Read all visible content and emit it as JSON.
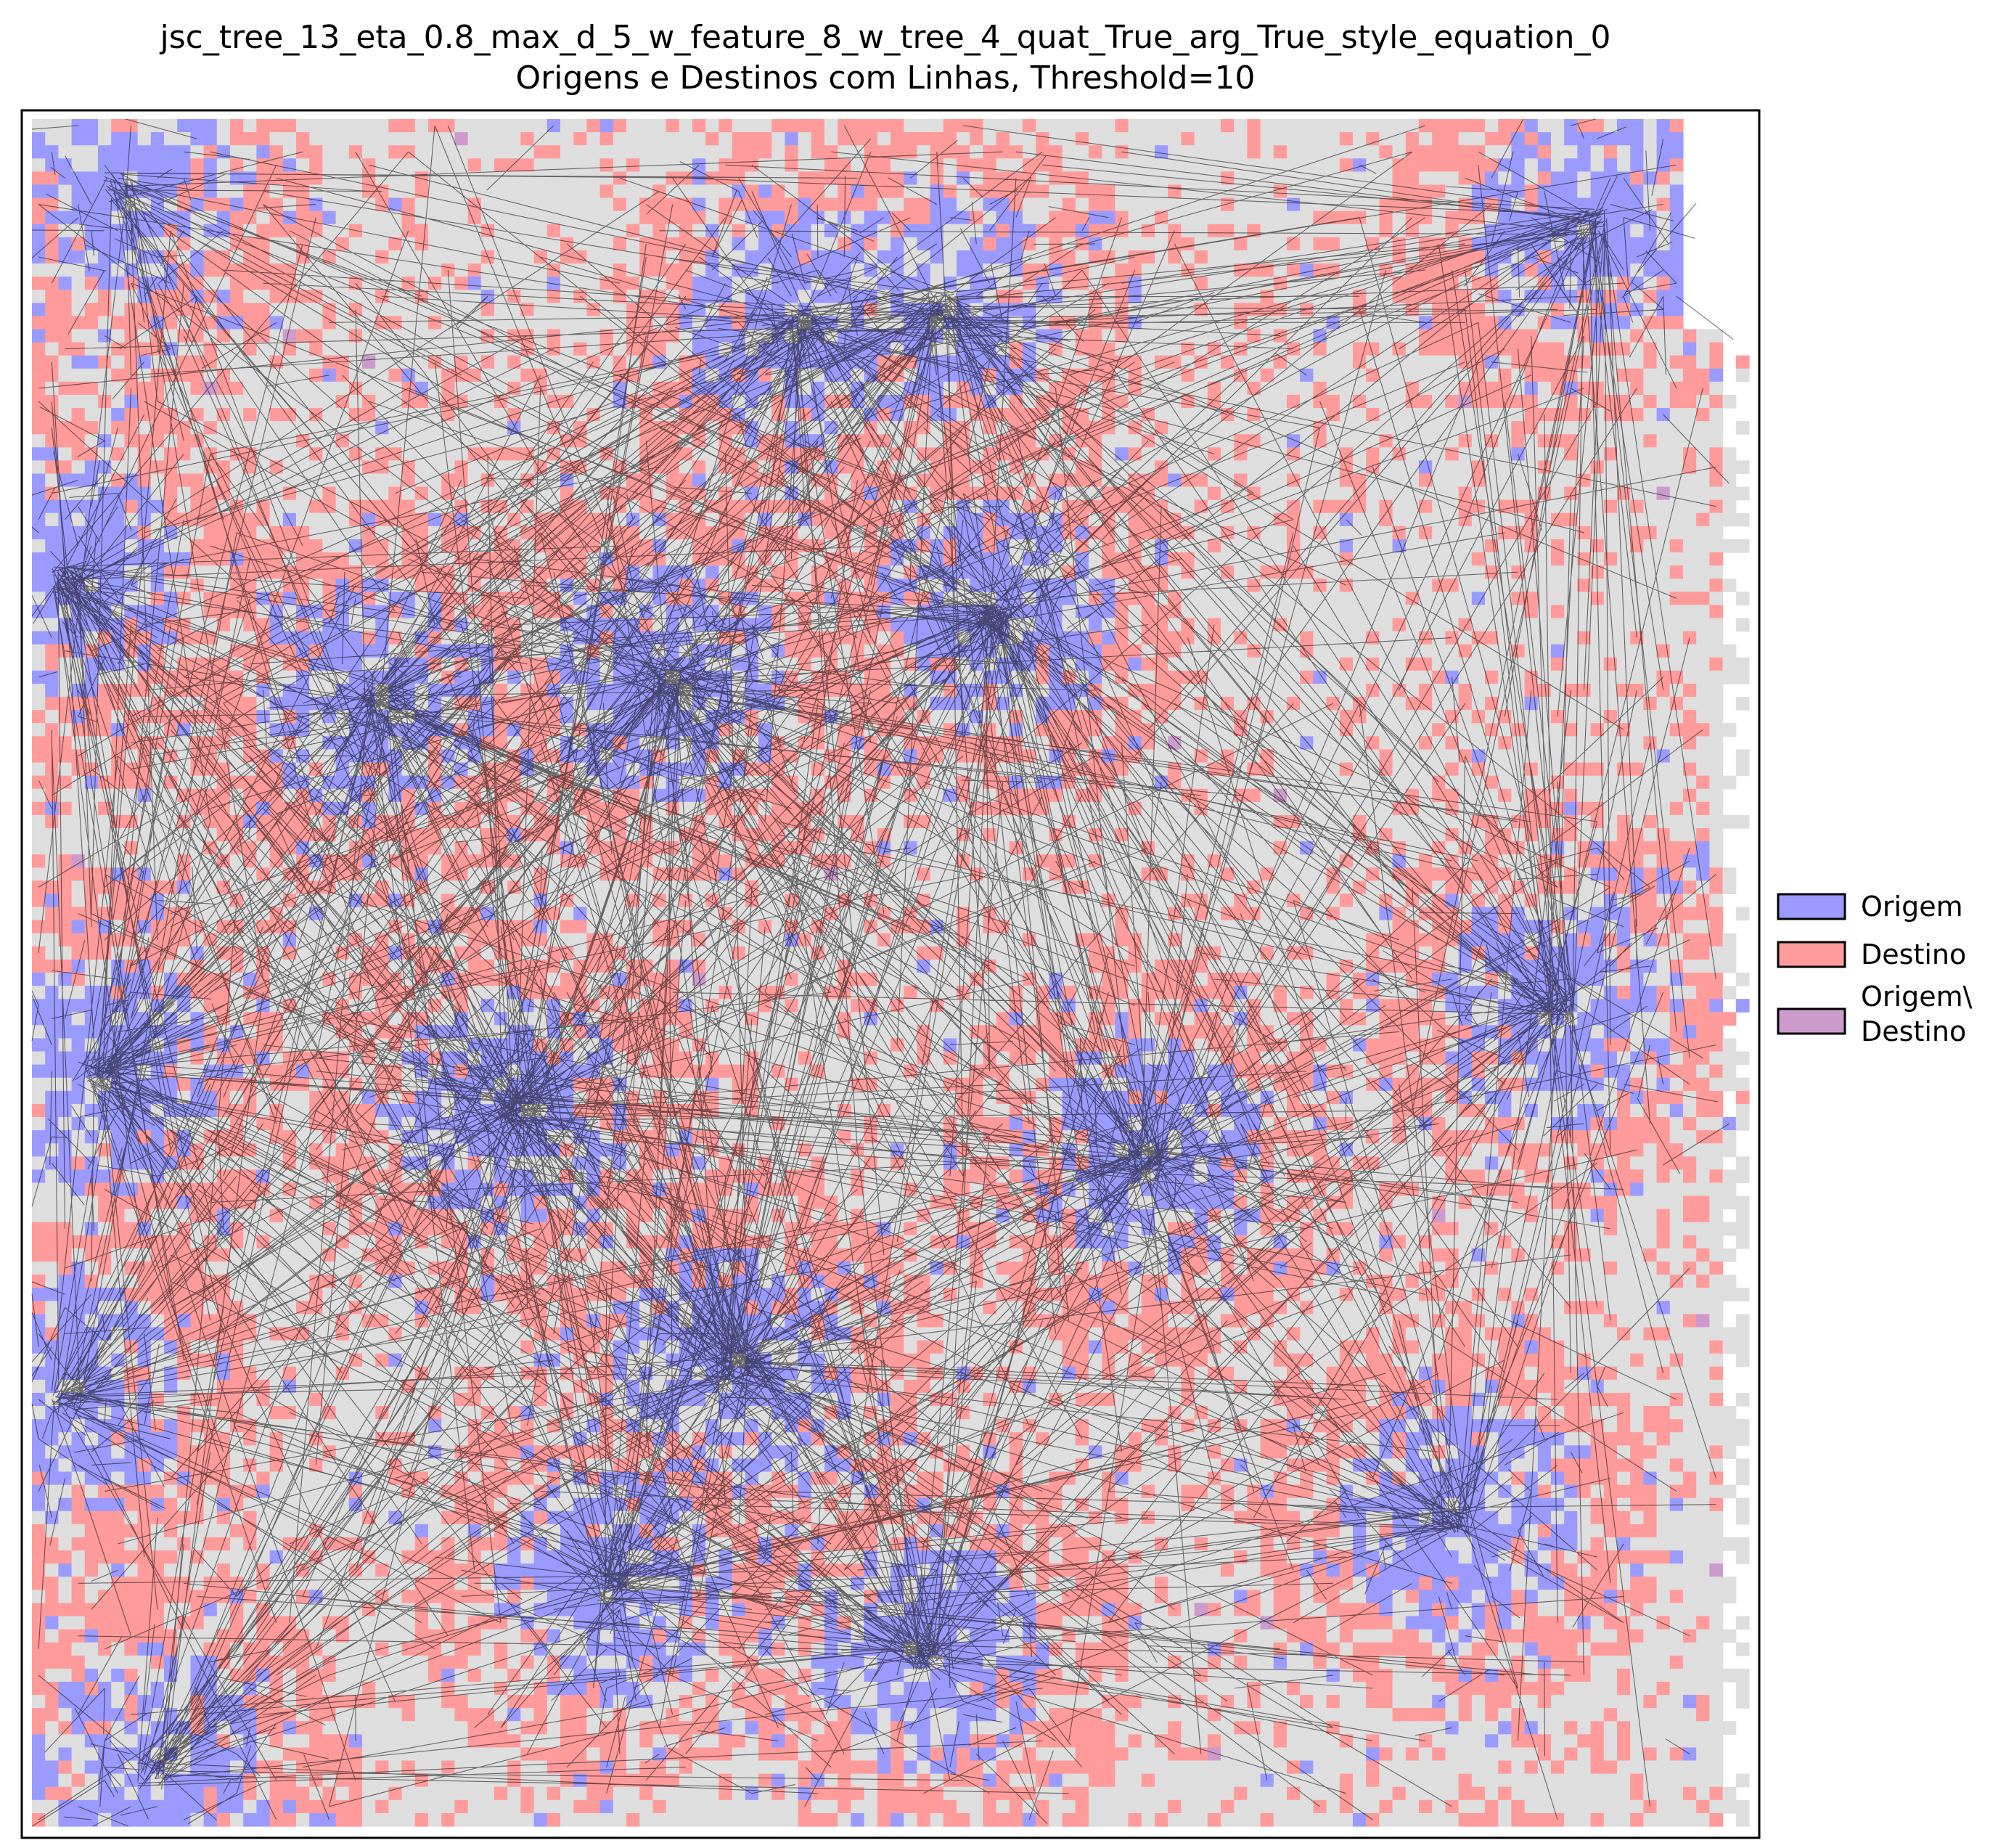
{
  "chart_data": {
    "type": "heatmap",
    "title": "jsc_tree_13_eta_0.8_max_d_5_w_feature_8_w_tree_4_quat_True_arg_True_style_equation_0",
    "subtitle": "Origens e Destinos com Linhas, Threshold=10",
    "xlabel": "",
    "ylabel": "",
    "axes_ticks": false,
    "grid": false,
    "threshold": 10,
    "legend": {
      "placement": "outside-right",
      "entries": [
        {
          "label": "Origem",
          "color": "#9b9bff",
          "edge": "#000000"
        },
        {
          "label": "Destino",
          "color": "#ff9b9b",
          "edge": "#000000"
        },
        {
          "label_line1": "Origem\\",
          "label_line2": "Destino",
          "color": "#cc9bcc",
          "edge": "#000000"
        }
      ]
    },
    "cell_colors": {
      "background": "#dedede",
      "origin": "#9b9bff",
      "destination": "#ff9b9b",
      "both": "#cc9bcc",
      "line": "#000000"
    },
    "origin_clusters": [
      {
        "x": 0.07,
        "y": 0.97
      },
      {
        "x": 0.34,
        "y": 0.86
      },
      {
        "x": 0.52,
        "y": 0.9
      },
      {
        "x": 0.02,
        "y": 0.75
      },
      {
        "x": 0.41,
        "y": 0.73
      },
      {
        "x": 0.65,
        "y": 0.61
      },
      {
        "x": 0.28,
        "y": 0.58
      },
      {
        "x": 0.04,
        "y": 0.56
      },
      {
        "x": 0.02,
        "y": 0.27
      },
      {
        "x": 0.2,
        "y": 0.34
      },
      {
        "x": 0.37,
        "y": 0.33
      },
      {
        "x": 0.56,
        "y": 0.29
      },
      {
        "x": 0.05,
        "y": 0.04
      },
      {
        "x": 0.53,
        "y": 0.11
      },
      {
        "x": 0.91,
        "y": 0.06
      },
      {
        "x": 0.89,
        "y": 0.52
      },
      {
        "x": 0.83,
        "y": 0.82
      },
      {
        "x": 0.45,
        "y": 0.12
      }
    ]
  }
}
